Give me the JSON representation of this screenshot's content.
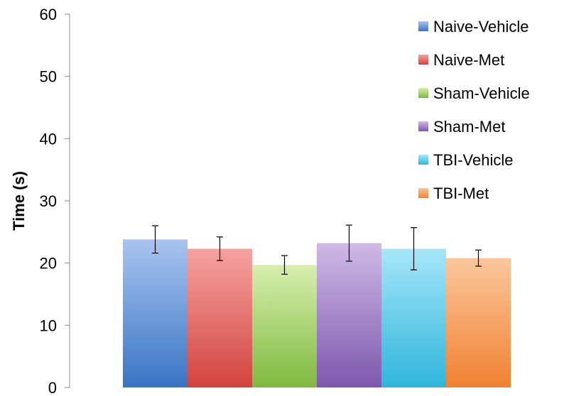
{
  "chart_data": {
    "type": "bar",
    "title": "",
    "xlabel": "",
    "ylabel": "Time (s)",
    "ylim": [
      0,
      60
    ],
    "yticks": [
      0,
      10,
      20,
      30,
      40,
      50,
      60
    ],
    "grid": false,
    "legend_position": "top-right",
    "series": [
      {
        "name": "Naive-Vehicle",
        "value": 23.8,
        "error": 2.2,
        "color_top": "#a9c4f0",
        "color_bottom": "#3a74c4"
      },
      {
        "name": "Naive-Met",
        "value": 22.3,
        "error": 1.9,
        "color_top": "#f6a3a1",
        "color_bottom": "#d2433f"
      },
      {
        "name": "Sham-Vehicle",
        "value": 19.7,
        "error": 1.5,
        "color_top": "#d7efae",
        "color_bottom": "#7fb93f"
      },
      {
        "name": "Sham-Met",
        "value": 23.2,
        "error": 2.9,
        "color_top": "#cfb9e6",
        "color_bottom": "#7c58ad"
      },
      {
        "name": "TBI-Vehicle",
        "value": 22.3,
        "error": 3.4,
        "color_top": "#a6e6fa",
        "color_bottom": "#2fb6da"
      },
      {
        "name": "TBI-Met",
        "value": 20.8,
        "error": 1.3,
        "color_top": "#fbc79c",
        "color_bottom": "#f08132"
      }
    ]
  }
}
